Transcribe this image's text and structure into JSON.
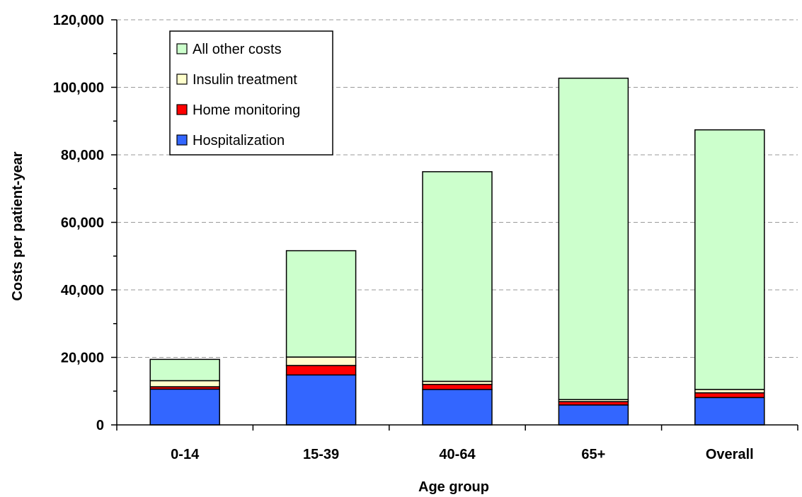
{
  "chart_data": {
    "type": "bar",
    "stacked": true,
    "title": "",
    "xlabel": "Age group",
    "ylabel": "Costs per patient-year",
    "categories": [
      "0-14",
      "15-39",
      "40-64",
      "65+",
      "Overall"
    ],
    "ylim": [
      0,
      120000
    ],
    "yticks": [
      0,
      20000,
      40000,
      60000,
      80000,
      100000,
      120000
    ],
    "ytick_labels": [
      "0",
      "20,000",
      "40,000",
      "60,000",
      "80,000",
      "100,000",
      "120,000"
    ],
    "grid": "horizontal dashed",
    "legend_position": "top-left",
    "series": [
      {
        "name": "Hospitalization",
        "color": "#3366ff",
        "values": [
          10600,
          14800,
          10500,
          5900,
          8100
        ]
      },
      {
        "name": "Home monitoring",
        "color": "#ff0000",
        "values": [
          700,
          2800,
          1500,
          1000,
          1400
        ]
      },
      {
        "name": "Insulin treatment",
        "color": "#ffffcc",
        "values": [
          1800,
          2500,
          900,
          600,
          1000
        ]
      },
      {
        "name": "All other costs",
        "color": "#ccffcc",
        "values": [
          6300,
          31500,
          62100,
          95200,
          76900
        ]
      }
    ],
    "legend_order": [
      "All other costs",
      "Insulin treatment",
      "Home monitoring",
      "Hospitalization"
    ]
  }
}
